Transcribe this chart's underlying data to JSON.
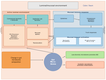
{
  "figsize": [
    1.06,
    0.8
  ],
  "dpi": 100,
  "bg_salmon": "#f5b89a",
  "bg_blue": "#c5dff0",
  "box_salmon_dark": "#f0956a",
  "box_teal": "#8ecece",
  "box_blue_inner": "#a8cfe8",
  "box_white": "#f0f8ff",
  "box_orange": "#f5a050",
  "box_green": "#b8e8a0",
  "box_pink_light": "#ffd8c8",
  "arrow_col": "#444444",
  "text_dark": "#222222",
  "title_text": "FIGURE WO-29. Proposed metabolic roles of the gut microbiome in IBD."
}
